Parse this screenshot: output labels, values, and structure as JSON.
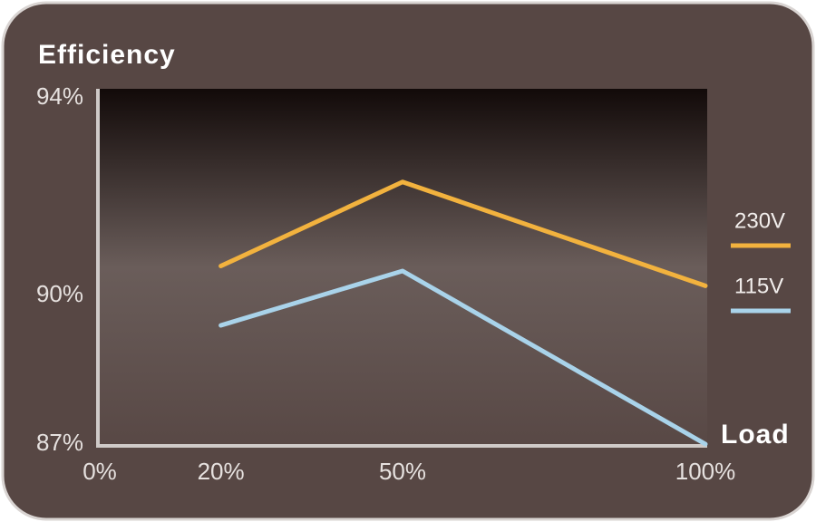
{
  "chart_data": {
    "type": "line",
    "title": "Efficiency",
    "x_label": "Load",
    "x": [
      20,
      50,
      100
    ],
    "series": [
      {
        "name": "230V",
        "color": "#f2b23e",
        "values": [
          90.6,
          92.3,
          90.2
        ]
      },
      {
        "name": "115V",
        "color": "#a9d3ea",
        "values": [
          89.4,
          90.5,
          87
        ]
      }
    ],
    "xlim": [
      0,
      100
    ],
    "xticks": [
      {
        "value": 0,
        "label": "0%"
      },
      {
        "value": 20,
        "label": "20%"
      },
      {
        "value": 50,
        "label": "50%"
      },
      {
        "value": 100,
        "label": "100%"
      }
    ],
    "ylim": [
      87,
      94
    ],
    "yticks": [
      {
        "value": 87,
        "label": "87%"
      },
      {
        "value": 90,
        "label": "90%"
      },
      {
        "value": 94,
        "label": "94%"
      }
    ],
    "grid": false,
    "legend": "right"
  }
}
